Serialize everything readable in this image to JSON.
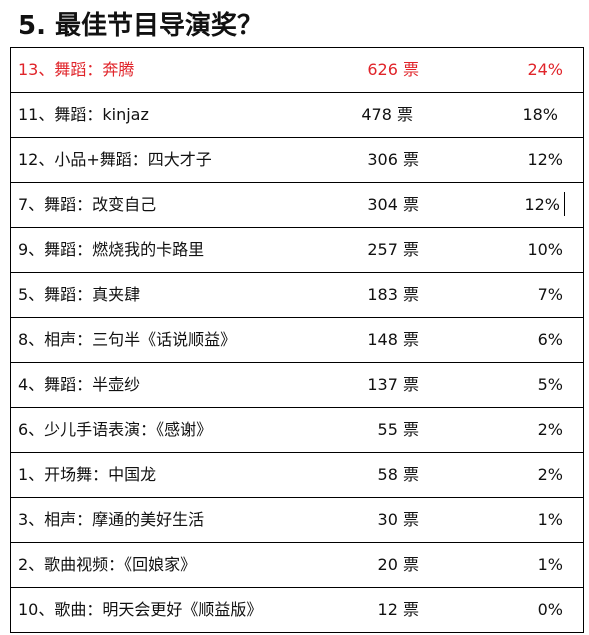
{
  "title": "5. 最佳节目导演奖？",
  "table": {
    "rows": [
      {
        "name": "13、舞蹈：奔腾",
        "votes": "626 票",
        "percent": "24%"
      },
      {
        "name": "11、舞蹈：kinjaz",
        "votes": "478 票",
        "percent": "18%"
      },
      {
        "name": "12、小品+舞蹈：四大才子",
        "votes": "306 票",
        "percent": "12%"
      },
      {
        "name": "7、舞蹈：改变自己",
        "votes": "304 票",
        "percent": "12%"
      },
      {
        "name": "9、舞蹈：燃烧我的卡路里",
        "votes": "257 票",
        "percent": "10%"
      },
      {
        "name": "5、舞蹈：真夹肆",
        "votes": "183 票",
        "percent": "7%"
      },
      {
        "name": "8、相声：三句半《话说顺益》",
        "votes": "148 票",
        "percent": "6%"
      },
      {
        "name": "4、舞蹈：半壶纱",
        "votes": "137 票",
        "percent": "5%"
      },
      {
        "name": "6、少儿手语表演：《感谢》",
        "votes": "55 票",
        "percent": "2%"
      },
      {
        "name": "1、开场舞：中国龙",
        "votes": "58 票",
        "percent": "2%"
      },
      {
        "name": "3、相声：摩通的美好生活",
        "votes": "30 票",
        "percent": "1%"
      },
      {
        "name": "2、歌曲视频：《回娘家》",
        "votes": "20 票",
        "percent": "1%"
      },
      {
        "name": "10、歌曲：明天会更好《顺益版》",
        "votes": "12 票",
        "percent": "0%"
      }
    ],
    "highlight_color": "#e0242a"
  }
}
